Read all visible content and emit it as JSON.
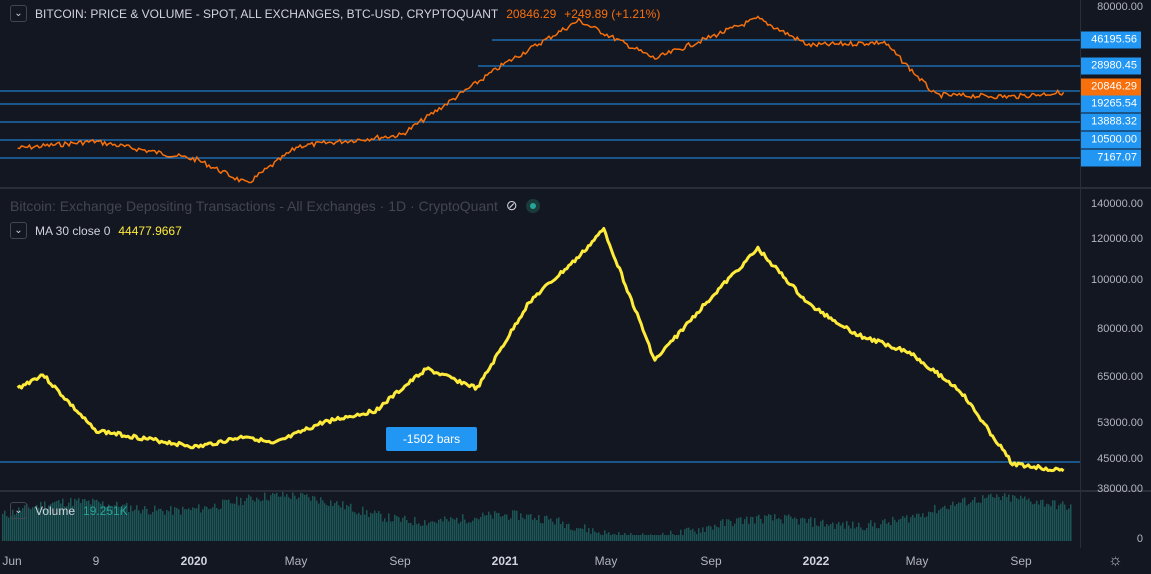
{
  "price_pane": {
    "title": "BITCOIN: PRICE & VOLUME - SPOT, ALL EXCHANGES, BTC-USD, CRYPTOQUANT",
    "last": "20846.29",
    "change": "+249.89 (+1.21%)",
    "axis_ticks": [
      "80000.00"
    ],
    "levels": [
      "46195.56",
      "28980.45",
      "19265.54",
      "13888.32",
      "10500.00",
      "7167.07"
    ],
    "current_label": "20846.29",
    "line_color": "#f7700c",
    "level_color": "#2196f3"
  },
  "deposits_pane": {
    "title": "Bitcoin: Exchange Depositing Transactions - All Exchanges · 1D · CryptoQuant",
    "ma_label": "MA 30 close 0",
    "ma_value": "44477.9667",
    "axis_ticks": [
      "140000.00",
      "120000.00",
      "100000.00",
      "80000.00",
      "65000.00",
      "53000.00",
      "45000.00",
      "38000.00"
    ],
    "bars_badge": "-1502 bars",
    "line_color": "#ffeb3b",
    "icons": [
      "eye-off-icon",
      "status-dot-icon"
    ]
  },
  "volume_pane": {
    "label": "Volume",
    "value": "19.251K",
    "axis_ticks": [
      "0"
    ],
    "bar_color": "#26a69a"
  },
  "time_axis": [
    "Jun",
    "9",
    "2020",
    "May",
    "Sep",
    "2021",
    "May",
    "Sep",
    "2022",
    "May",
    "Sep"
  ],
  "chart_data": [
    {
      "type": "line",
      "name": "price",
      "x": [
        "2019-06",
        "2019-09",
        "2020-01",
        "2020-03",
        "2020-05",
        "2020-09",
        "2021-01",
        "2021-04",
        "2021-07",
        "2021-11",
        "2022-01",
        "2022-04",
        "2022-06",
        "2022-09",
        "2022-11"
      ],
      "y": [
        8800,
        9800,
        7400,
        5100,
        9100,
        10800,
        32000,
        63000,
        35000,
        65000,
        43000,
        45000,
        20000,
        19500,
        20846
      ],
      "ylim": [
        5000,
        80000
      ],
      "scale": "log"
    },
    {
      "type": "line",
      "name": "deposits_ma30",
      "x": [
        "2019-06",
        "2019-07",
        "2019-09",
        "2019-11",
        "2020-01",
        "2020-03",
        "2020-04",
        "2020-06",
        "2020-08",
        "2020-10",
        "2020-12",
        "2021-02",
        "2021-04",
        "2021-05",
        "2021-07",
        "2021-09",
        "2021-11",
        "2022-01",
        "2022-03",
        "2022-05",
        "2022-07",
        "2022-09",
        "2022-11"
      ],
      "y": [
        74000,
        79000,
        59000,
        56000,
        53000,
        57000,
        54000,
        62000,
        66000,
        81000,
        74000,
        105000,
        121000,
        131000,
        84000,
        105000,
        124000,
        104000,
        93000,
        87000,
        73000,
        47000,
        44478
      ],
      "ylim": [
        38000,
        140000
      ]
    }
  ]
}
